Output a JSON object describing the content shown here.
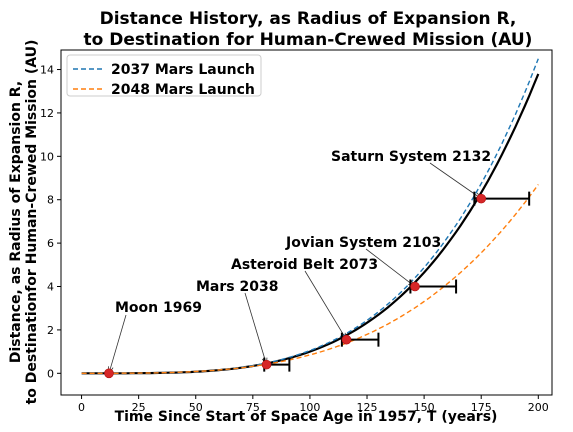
{
  "chart_data": {
    "type": "line",
    "title": [
      "Distance History, as Radius of Expansion R,",
      "to Destination for Human-Crewed Mission (AU)"
    ],
    "xlabel": "Time Since Start of Space Age in 1957, T (years)",
    "ylabel": [
      "Distance, as Radius of Expansion R,",
      "to Destinationfor Human-Crewed Mission (AU)"
    ],
    "xlim": [
      -9,
      206
    ],
    "ylim": [
      -1.0,
      14.9
    ],
    "xticks": [
      0,
      25,
      50,
      75,
      100,
      125,
      150,
      175,
      200
    ],
    "yticks": [
      0,
      2,
      4,
      6,
      8,
      10,
      12,
      14
    ],
    "grid": false,
    "legend_position": "top-left",
    "series": [
      {
        "name": "2037 Mars Launch",
        "style": "dashed",
        "color": "#1f77b4",
        "curve": {
          "t0": 80,
          "y0": 0.45,
          "t1": 200,
          "y1": 14.5
        }
      },
      {
        "name": "2048 Mars Launch",
        "style": "dashed",
        "color": "#ff7f0e",
        "curve": {
          "t0": 80,
          "y0": 0.4,
          "t1": 200,
          "y1": 8.7
        }
      },
      {
        "name": "",
        "style": "solid",
        "color": "#000000",
        "curve": {
          "t0": 80,
          "y0": 0.43,
          "t1": 200,
          "y1": 13.8
        }
      }
    ],
    "milestones": [
      {
        "label": "Moon 1969",
        "x": 12,
        "y": 0.0,
        "err_low": 12,
        "err_high": 12
      },
      {
        "label": "Mars 2038",
        "x": 81,
        "y": 0.4,
        "err_low": 80,
        "err_high": 91
      },
      {
        "label": "Asteroid Belt 2073",
        "x": 116,
        "y": 1.55,
        "err_low": 114,
        "err_high": 130
      },
      {
        "label": "Jovian System 2103",
        "x": 146,
        "y": 4.0,
        "err_low": 144,
        "err_high": 164
      },
      {
        "label": "Saturn System 2132",
        "x": 175,
        "y": 8.05,
        "err_low": 172,
        "err_high": 196
      }
    ]
  }
}
